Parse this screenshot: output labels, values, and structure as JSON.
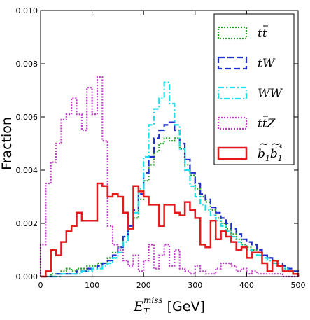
{
  "chart_data": {
    "type": "line",
    "xlabel": "E_T^miss [GeV]",
    "xlabel_parts": {
      "sym": "E",
      "sub": "T",
      "sup": "miss",
      "unit": " [GeV]"
    },
    "ylabel": "Fraction",
    "xlim": [
      0,
      500
    ],
    "ylim": [
      0,
      0.01
    ],
    "x_ticks": [
      "0",
      "100",
      "200",
      "300",
      "400",
      "500"
    ],
    "y_ticks": [
      "0.000",
      "0.002",
      "0.004",
      "0.006",
      "0.008",
      "0.010"
    ],
    "grid": false,
    "legend_position": "top-right",
    "bin_width": 10,
    "x_bin_edges_start": 0,
    "series": [
      {
        "name": "tt̄",
        "label_parts": {
          "main": "tt",
          "over": "t"
        },
        "color": "#2ca02c",
        "style": "dotted",
        "values": [
          0,
          0,
          0.0001,
          0.0001,
          0.0002,
          0.0003,
          0.0002,
          0.0003,
          0.0003,
          0.0004,
          0.0004,
          0.0005,
          0.0005,
          0.0007,
          0.0009,
          0.0011,
          0.0015,
          0.0019,
          0.0022,
          0.0029,
          0.0036,
          0.0042,
          0.0047,
          0.005,
          0.0052,
          0.0051,
          0.0052,
          0.0048,
          0.0042,
          0.0038,
          0.0033,
          0.003,
          0.0028,
          0.0025,
          0.0022,
          0.002,
          0.0018,
          0.0016,
          0.0014,
          0.0012,
          0.0011,
          0.001,
          0.0009,
          0.0008,
          0.0007,
          0.0005,
          0.0004,
          0.0003,
          0.0002,
          0.0001
        ]
      },
      {
        "name": "tW",
        "color": "#1f2fcc",
        "style": "dashed",
        "values": [
          0,
          0,
          0,
          0.0001,
          0.0001,
          0.0001,
          0.0001,
          0.0002,
          0.0002,
          0.0003,
          0.0003,
          0.0004,
          0.0005,
          0.0006,
          0.0008,
          0.0011,
          0.0015,
          0.0019,
          0.0025,
          0.0031,
          0.0039,
          0.0045,
          0.0052,
          0.0055,
          0.0057,
          0.0058,
          0.0055,
          0.005,
          0.0044,
          0.0039,
          0.0035,
          0.0031,
          0.0029,
          0.0026,
          0.0024,
          0.0022,
          0.002,
          0.0018,
          0.0016,
          0.0014,
          0.0013,
          0.0012,
          0.001,
          0.0008,
          0.0007,
          0.0006,
          0.0005,
          0.0004,
          0.0003,
          0.0002
        ]
      },
      {
        "name": "WW",
        "color": "#17e0e8",
        "style": "dashdot",
        "values": [
          0,
          0,
          0,
          0,
          0.0001,
          0.0001,
          0.0001,
          0.0001,
          0.0002,
          0.0002,
          0.0003,
          0.0003,
          0.0004,
          0.0005,
          0.0007,
          0.0009,
          0.0013,
          0.0018,
          0.0024,
          0.0033,
          0.0045,
          0.0057,
          0.0063,
          0.0067,
          0.0073,
          0.0065,
          0.0057,
          0.0048,
          0.004,
          0.0034,
          0.003,
          0.0027,
          0.0025,
          0.0023,
          0.0021,
          0.0019,
          0.0017,
          0.0015,
          0.0013,
          0.0011,
          0.001,
          0.0009,
          0.0008,
          0.0007,
          0.0006,
          0.0005,
          0.0004,
          0.0003,
          0.0002,
          0.0001
        ]
      },
      {
        "name": "tt̄Z",
        "label_parts": {
          "main": "tt",
          "over": "t",
          "tail": "Z"
        },
        "color": "#c03cc8",
        "style": "dotted",
        "values": [
          0.0012,
          0.0035,
          0.0043,
          0.005,
          0.0059,
          0.0061,
          0.0067,
          0.0061,
          0.0055,
          0.0071,
          0.0061,
          0.0075,
          0.0051,
          0.0019,
          0.0012,
          0.001,
          0.0006,
          0.0004,
          0.0008,
          0.0002,
          0.0006,
          0.0012,
          0.0003,
          0.0008,
          0.0012,
          0.0004,
          0.001,
          0.0003,
          0.0002,
          0.0001,
          0.0004,
          0.0002,
          0.0001,
          0.0001,
          0.0003,
          0.0005,
          0.0005,
          0.0004,
          0.0002,
          0.0003,
          0.0001,
          0.0002,
          0.0001,
          0.0001,
          0.0001,
          0.0001,
          0.0001,
          0,
          0,
          0
        ]
      },
      {
        "name": "b̃₁b̃₁*",
        "label_parts": {
          "main": "b",
          "sub": "1",
          "main2": "b",
          "sub2": "1",
          "sup2": "*"
        },
        "color": "#e31a1c",
        "style": "solid",
        "values": [
          0,
          0.0002,
          0.001,
          0.0008,
          0.0013,
          0.0017,
          0.0019,
          0.0024,
          0.0021,
          0.0021,
          0.0021,
          0.0035,
          0.0034,
          0.003,
          0.0031,
          0.003,
          0.0024,
          0.0018,
          0.0034,
          0.0032,
          0.003,
          0.0027,
          0.0027,
          0.0019,
          0.0027,
          0.0027,
          0.0024,
          0.0023,
          0.0028,
          0.0025,
          0.0022,
          0.0012,
          0.0011,
          0.0021,
          0.0014,
          0.0017,
          0.0015,
          0.0013,
          0.001,
          0.0011,
          0.0007,
          0.0009,
          0.0009,
          0.0005,
          0.0002,
          0.0006,
          0.0004,
          0.0002,
          0.0002,
          0.0001
        ]
      }
    ]
  }
}
